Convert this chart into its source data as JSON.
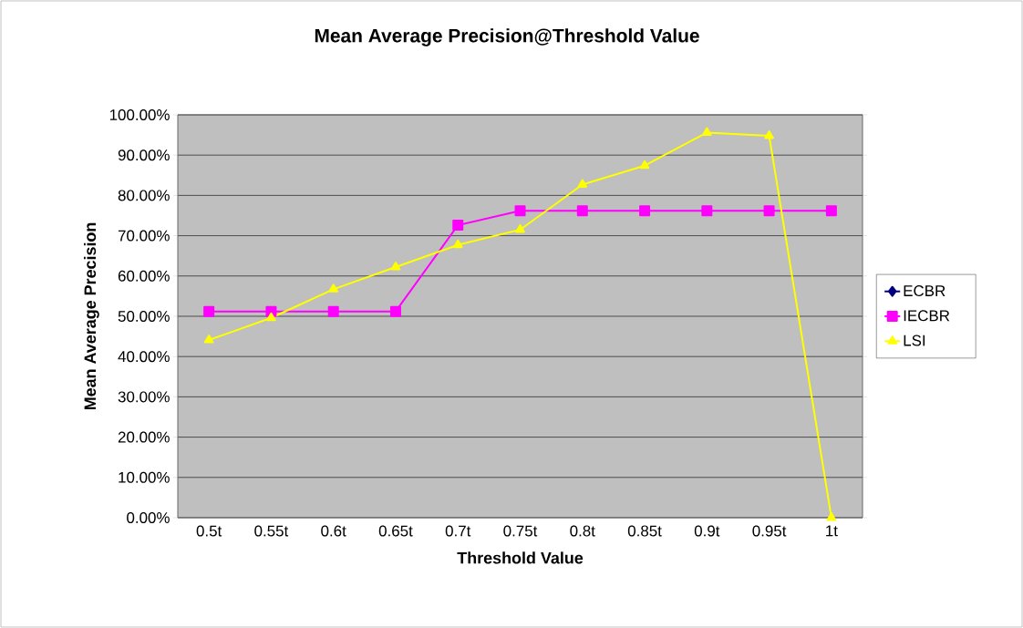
{
  "chart_data": {
    "type": "line",
    "title": "Mean Average Precision@Threshold Value",
    "xlabel": "Threshold Value",
    "ylabel": "Mean Average Precision",
    "categories": [
      "0.5t",
      "0.55t",
      "0.6t",
      "0.65t",
      "0.7t",
      "0.75t",
      "0.8t",
      "0.85t",
      "0.9t",
      "0.95t",
      "1t"
    ],
    "series": [
      {
        "name": "ECBR",
        "color": "#000080",
        "marker": "diamond",
        "values": [
          null,
          null,
          null,
          null,
          null,
          null,
          null,
          null,
          null,
          null,
          null
        ]
      },
      {
        "name": "IECBR",
        "color": "#ff00ff",
        "marker": "square",
        "values": [
          51.2,
          51.2,
          51.2,
          51.2,
          72.6,
          76.2,
          76.2,
          76.2,
          76.2,
          76.2,
          76.2
        ]
      },
      {
        "name": "LSI",
        "color": "#ffff00",
        "marker": "triangle",
        "values": [
          44.1,
          49.6,
          56.7,
          62.2,
          67.7,
          71.5,
          82.7,
          87.4,
          95.6,
          94.8,
          0
        ]
      }
    ],
    "ylim": [
      0,
      100
    ],
    "yticks": [
      {
        "value": 0,
        "label": "0.00%"
      },
      {
        "value": 10,
        "label": "10.00%"
      },
      {
        "value": 20,
        "label": "20.00%"
      },
      {
        "value": 30,
        "label": "30.00%"
      },
      {
        "value": 40,
        "label": "40.00%"
      },
      {
        "value": 50,
        "label": "50.00%"
      },
      {
        "value": 60,
        "label": "60.00%"
      },
      {
        "value": 70,
        "label": "70.00%"
      },
      {
        "value": 80,
        "label": "80.00%"
      },
      {
        "value": 90,
        "label": "90.00%"
      },
      {
        "value": 100,
        "label": "100.00%"
      }
    ],
    "grid": "y",
    "legend": "right",
    "line_style": "solid"
  }
}
